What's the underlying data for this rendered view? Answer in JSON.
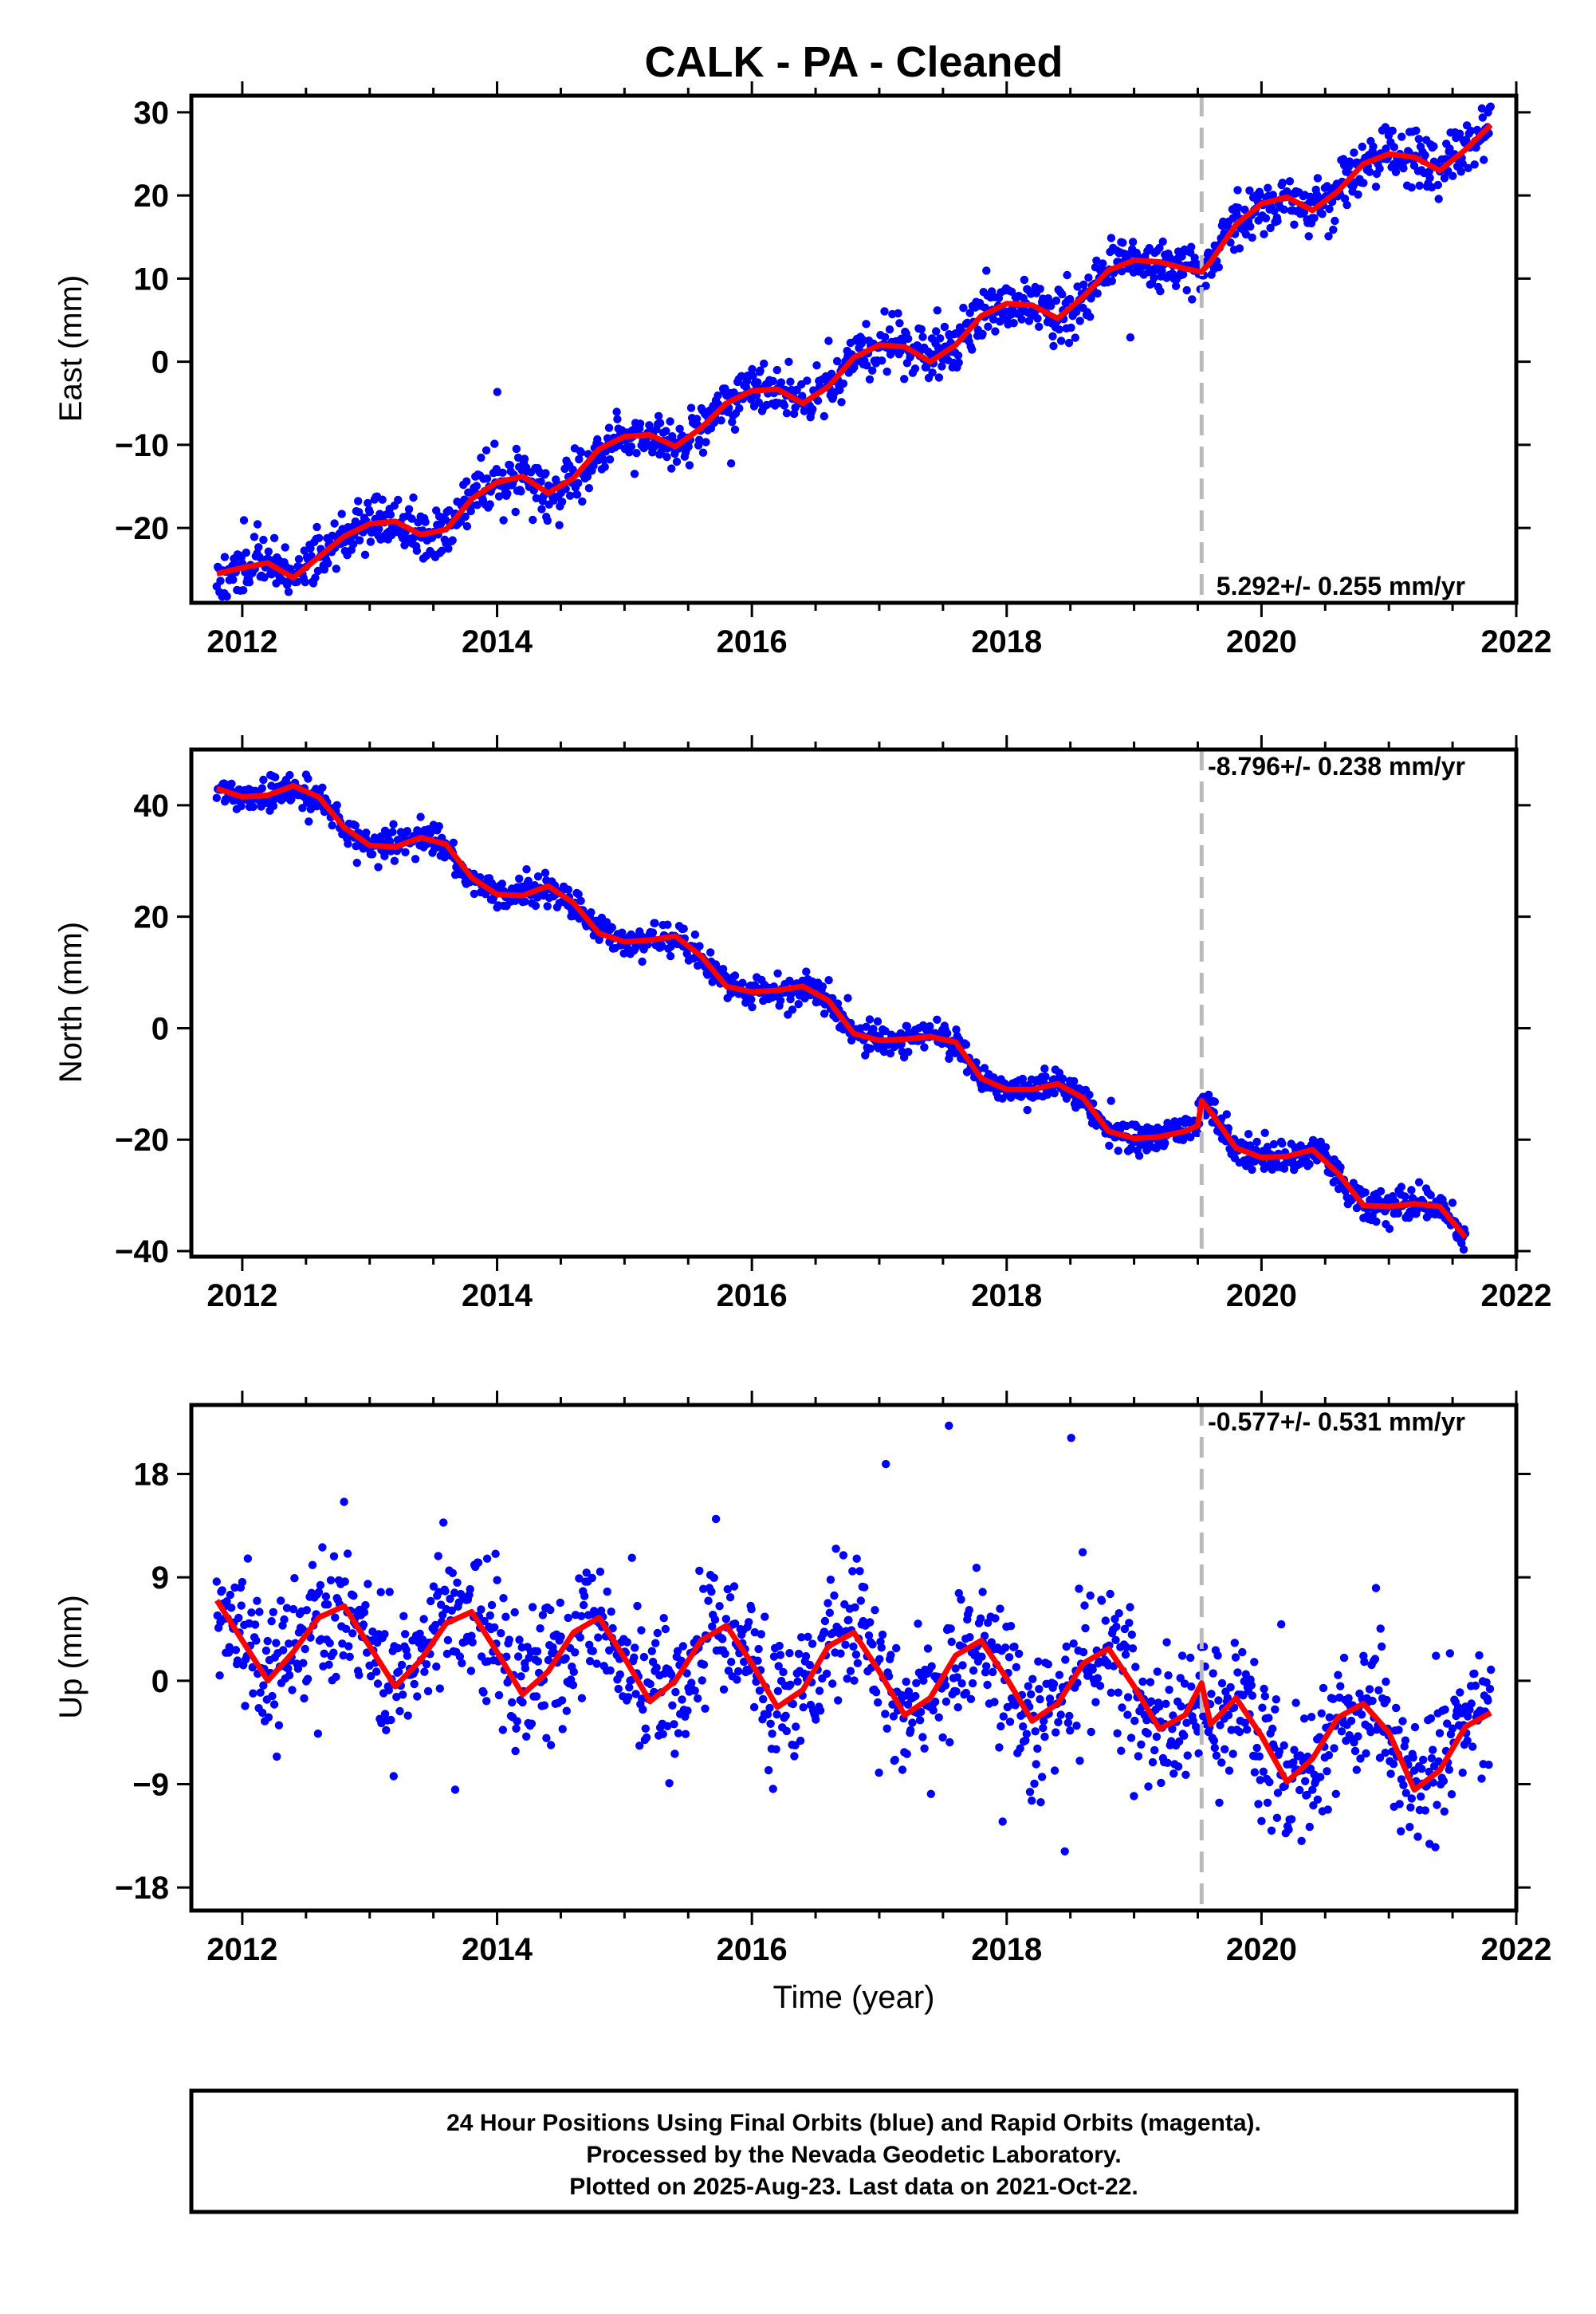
{
  "chart_data": {
    "title": "CALK  - PA - Cleaned",
    "xlabel": "Time (year)",
    "x_ticks": [
      2012,
      2014,
      2016,
      2018,
      2020,
      2022
    ],
    "xlim": [
      2011.6,
      2022.0
    ],
    "event_line_x": 2019.53,
    "colors": {
      "points": "#0000ff",
      "fit": "#ff0000",
      "event_line": "#bbbbbb"
    },
    "panels": [
      {
        "type": "scatter",
        "name": "east",
        "ylabel": "East (mm)",
        "ylim": [
          -29,
          32
        ],
        "y_ticks": [
          30,
          20,
          10,
          0,
          -10,
          -20
        ],
        "rate_text": "5.292+/- 0.255 mm/yr",
        "rate_position": "bottom-right",
        "fit_x": [
          2011.8,
          2012.0,
          2012.2,
          2012.4,
          2012.6,
          2012.8,
          2013.0,
          2013.2,
          2013.4,
          2013.6,
          2013.8,
          2014.0,
          2014.2,
          2014.4,
          2014.6,
          2014.8,
          2015.0,
          2015.2,
          2015.4,
          2015.6,
          2015.8,
          2016.0,
          2016.2,
          2016.4,
          2016.6,
          2016.8,
          2017.0,
          2017.2,
          2017.4,
          2017.6,
          2017.8,
          2018.0,
          2018.2,
          2018.4,
          2018.6,
          2018.8,
          2019.0,
          2019.2,
          2019.4,
          2019.53,
          2019.6,
          2019.8,
          2020.0,
          2020.2,
          2020.4,
          2020.6,
          2020.8,
          2021.0,
          2021.2,
          2021.4,
          2021.6,
          2021.8
        ],
        "fit_y": [
          -25.5,
          -24.8,
          -24.2,
          -26.0,
          -23.5,
          -21.0,
          -19.5,
          -19.2,
          -20.8,
          -20.2,
          -16.5,
          -14.5,
          -13.8,
          -15.8,
          -14.0,
          -10.5,
          -9.0,
          -8.8,
          -10.2,
          -8.0,
          -5.0,
          -3.5,
          -3.3,
          -5.0,
          -3.0,
          0.5,
          2.0,
          1.8,
          0.0,
          2.0,
          5.5,
          7.0,
          6.8,
          5.2,
          7.8,
          11.0,
          12.2,
          12.0,
          11.2,
          10.8,
          12.0,
          16.5,
          19.0,
          19.8,
          18.2,
          20.5,
          23.8,
          25.0,
          24.6,
          23.0,
          25.5,
          28.5
        ],
        "trend_start": -24.5,
        "trend_rate": 5.292,
        "noise_sd": 1.6,
        "seed": 11
      },
      {
        "type": "scatter",
        "name": "north",
        "ylabel": "North (mm)",
        "ylim": [
          -41,
          50
        ],
        "y_ticks": [
          40,
          20,
          0,
          -20,
          -40
        ],
        "rate_text": "-8.796+/- 0.238 mm/yr",
        "rate_position": "top-right",
        "fit_x": [
          2011.8,
          2012.0,
          2012.2,
          2012.4,
          2012.6,
          2012.8,
          2013.0,
          2013.2,
          2013.4,
          2013.6,
          2013.8,
          2014.0,
          2014.2,
          2014.4,
          2014.6,
          2014.8,
          2015.0,
          2015.2,
          2015.4,
          2015.6,
          2015.8,
          2016.0,
          2016.2,
          2016.4,
          2016.6,
          2016.8,
          2017.0,
          2017.2,
          2017.4,
          2017.6,
          2017.8,
          2018.0,
          2018.2,
          2018.4,
          2018.6,
          2018.8,
          2019.0,
          2019.2,
          2019.4,
          2019.5,
          2019.53,
          2019.6,
          2019.8,
          2020.0,
          2020.2,
          2020.4,
          2020.6,
          2020.8,
          2021.0,
          2021.2,
          2021.4,
          2021.6,
          2021.8
        ],
        "fit_y": [
          43.0,
          41.5,
          41.8,
          43.5,
          41.5,
          36.0,
          32.8,
          32.5,
          34.2,
          33.0,
          27.0,
          24.0,
          23.8,
          25.5,
          22.5,
          17.0,
          15.5,
          15.8,
          16.5,
          13.0,
          7.5,
          6.5,
          6.8,
          7.5,
          5.0,
          -1.0,
          -2.2,
          -2.0,
          -1.5,
          -2.5,
          -9.0,
          -11.0,
          -11.0,
          -10.0,
          -12.5,
          -18.5,
          -19.8,
          -19.5,
          -18.5,
          -17.5,
          -13.0,
          -15.0,
          -21.5,
          -23.2,
          -23.0,
          -21.8,
          -26.0,
          -31.8,
          -32.0,
          -31.5,
          -32.0,
          -37.5
        ],
        "trend_start": 43.0,
        "trend_rate": -8.796,
        "noise_sd": 1.3,
        "seed": 23
      },
      {
        "type": "scatter",
        "name": "up",
        "ylabel": "Up (mm)",
        "ylim": [
          -20,
          24
        ],
        "y_ticks": [
          18,
          9,
          0,
          -9,
          -18
        ],
        "rate_text": "-0.577+/- 0.531 mm/yr",
        "rate_position": "top-right",
        "fit_x": [
          2011.8,
          2012.0,
          2012.2,
          2012.4,
          2012.6,
          2012.8,
          2013.0,
          2013.2,
          2013.4,
          2013.6,
          2013.8,
          2014.0,
          2014.2,
          2014.4,
          2014.6,
          2014.8,
          2015.0,
          2015.2,
          2015.4,
          2015.6,
          2015.8,
          2016.0,
          2016.2,
          2016.4,
          2016.6,
          2016.8,
          2017.0,
          2017.2,
          2017.4,
          2017.6,
          2017.8,
          2018.0,
          2018.2,
          2018.4,
          2018.6,
          2018.8,
          2019.0,
          2019.2,
          2019.4,
          2019.53,
          2019.6,
          2019.8,
          2020.0,
          2020.2,
          2020.4,
          2020.6,
          2020.8,
          2021.0,
          2021.2,
          2021.4,
          2021.6,
          2021.8
        ],
        "fit_y": [
          7.0,
          3.5,
          0.0,
          2.5,
          5.5,
          6.5,
          3.0,
          -0.5,
          1.8,
          5.0,
          6.0,
          2.5,
          -1.2,
          0.8,
          4.2,
          5.5,
          2.0,
          -1.8,
          0.0,
          3.5,
          4.8,
          1.5,
          -2.3,
          -0.8,
          3.0,
          4.2,
          0.8,
          -3.0,
          -1.5,
          2.2,
          3.5,
          0.2,
          -3.5,
          -2.0,
          1.5,
          2.8,
          -0.5,
          -4.2,
          -3.0,
          -0.2,
          -3.8,
          -1.5,
          -4.8,
          -8.8,
          -6.8,
          -3.2,
          -2.0,
          -4.5,
          -9.5,
          -7.8,
          -4.0,
          -2.8
        ],
        "noise_sd": 3.0,
        "seed": 37
      }
    ]
  },
  "footer": {
    "lines": [
      "24 Hour Positions Using Final Orbits (blue) and Rapid Orbits (magenta).",
      "Processed by the Nevada Geodetic Laboratory.",
      "Plotted on 2025-Aug-23. Last data on 2021-Oct-22."
    ]
  }
}
